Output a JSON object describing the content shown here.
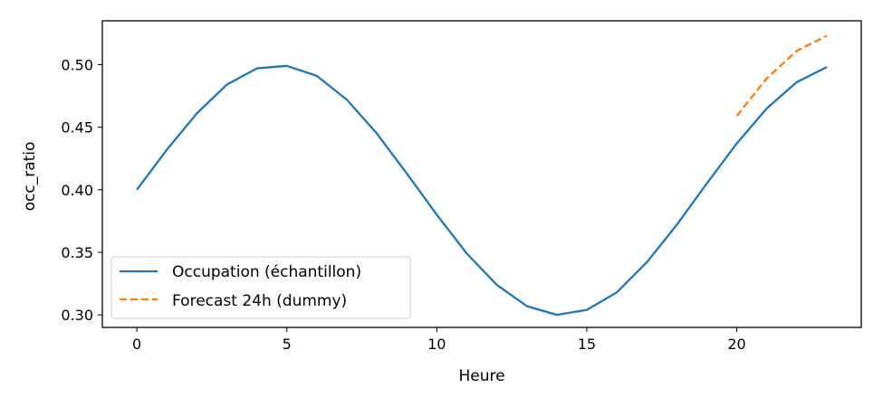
{
  "chart_data": {
    "type": "line",
    "xlabel": "Heure",
    "ylabel": "occ_ratio",
    "xlim": [
      -1.15,
      24.15
    ],
    "ylim": [
      0.29,
      0.535
    ],
    "xticks": [
      0,
      5,
      10,
      15,
      20
    ],
    "xtick_labels": [
      "0",
      "5",
      "10",
      "15",
      "20"
    ],
    "yticks": [
      0.3,
      0.35,
      0.4,
      0.45,
      0.5
    ],
    "ytick_labels": [
      "0.30",
      "0.35",
      "0.40",
      "0.45",
      "0.50"
    ],
    "grid": false,
    "legend_position": "lower-left",
    "series": [
      {
        "name": "Occupation (échantillon)",
        "color": "#1f77b4",
        "style": "solid",
        "x": [
          0,
          1,
          2,
          3,
          4,
          5,
          6,
          7,
          8,
          9,
          10,
          11,
          12,
          13,
          14,
          15,
          16,
          17,
          18,
          19,
          20,
          21,
          22,
          23
        ],
        "y": [
          0.4,
          0.432,
          0.461,
          0.484,
          0.497,
          0.499,
          0.491,
          0.472,
          0.445,
          0.413,
          0.38,
          0.349,
          0.324,
          0.307,
          0.3,
          0.304,
          0.318,
          0.342,
          0.372,
          0.405,
          0.437,
          0.465,
          0.486,
          0.498
        ]
      },
      {
        "name": "Forecast 24h (dummy)",
        "color": "#ff7f0e",
        "style": "dashed",
        "x": [
          20,
          21,
          22,
          23
        ],
        "y": [
          0.459,
          0.489,
          0.511,
          0.523
        ]
      }
    ]
  }
}
